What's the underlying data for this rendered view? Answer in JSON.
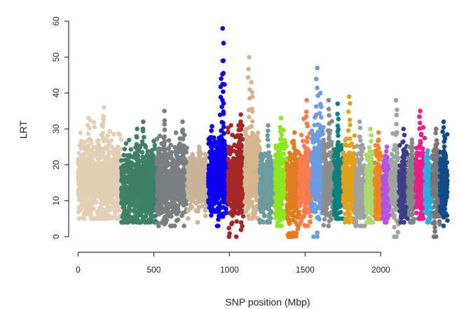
{
  "chart_data": {
    "type": "scatter",
    "xlabel": "SNP position (Mbp)",
    "ylabel": "LRT",
    "xlim": [
      -30,
      2470
    ],
    "ylim": [
      -2,
      62
    ],
    "xticks": [
      0,
      500,
      1000,
      1500,
      2000
    ],
    "yticks": [
      0,
      10,
      20,
      30,
      40,
      50,
      60
    ],
    "grid": false,
    "legend": "none",
    "series": [
      {
        "start": 0,
        "end": 285,
        "color": "#e3cfb6",
        "min": 5,
        "max": 36,
        "base": 16,
        "spread": 7,
        "count": 900,
        "peaks": [
          [
            170,
            36
          ],
          [
            70,
            33
          ]
        ]
      },
      {
        "start": 285,
        "end": 520,
        "color": "#3f8068",
        "min": 4,
        "max": 32,
        "base": 14,
        "spread": 7,
        "count": 700,
        "peaks": [
          [
            430,
            32
          ],
          [
            390,
            30
          ]
        ]
      },
      {
        "start": 520,
        "end": 720,
        "color": "#7a7f80",
        "min": 3,
        "max": 35,
        "base": 15,
        "spread": 7,
        "count": 550,
        "peaks": [
          [
            570,
            35
          ],
          [
            690,
            32
          ]
        ]
      },
      {
        "start": 720,
        "end": 860,
        "color": "#cab39a",
        "min": 4,
        "max": 26,
        "base": 15,
        "spread": 5,
        "count": 350,
        "peaks": [
          [
            800,
            25
          ]
        ]
      },
      {
        "start": 860,
        "end": 990,
        "color": "#0b00ee",
        "min": 3,
        "max": 58,
        "base": 17,
        "spread": 7,
        "count": 500,
        "peaks": [
          [
            955,
            58
          ],
          [
            960,
            49
          ],
          [
            945,
            44
          ]
        ]
      },
      {
        "start": 990,
        "end": 1100,
        "color": "#a52628",
        "min": 0,
        "max": 34,
        "base": 15,
        "spread": 7,
        "count": 350,
        "peaks": [
          [
            1075,
            34
          ],
          [
            1060,
            31
          ]
        ]
      },
      {
        "start": 1100,
        "end": 1200,
        "color": "#d5b58b",
        "min": 5,
        "max": 50,
        "base": 18,
        "spread": 7,
        "count": 350,
        "peaks": [
          [
            1130,
            50
          ],
          [
            1145,
            43
          ]
        ]
      },
      {
        "start": 1200,
        "end": 1300,
        "color": "#6e9b9e",
        "min": 4,
        "max": 32,
        "base": 14,
        "spread": 6,
        "count": 300,
        "peaks": [
          [
            1255,
            31
          ]
        ]
      },
      {
        "start": 1300,
        "end": 1380,
        "color": "#8ee621",
        "min": 3,
        "max": 33,
        "base": 15,
        "spread": 7,
        "count": 250,
        "peaks": [
          [
            1340,
            33
          ]
        ]
      },
      {
        "start": 1380,
        "end": 1460,
        "color": "#e07c22",
        "min": 0,
        "max": 30,
        "base": 13,
        "spread": 7,
        "count": 250,
        "peaks": [
          [
            1430,
            29
          ]
        ]
      },
      {
        "start": 1460,
        "end": 1540,
        "color": "#ff7b4f",
        "min": 3,
        "max": 38,
        "base": 15,
        "spread": 7,
        "count": 250,
        "peaks": [
          [
            1510,
            38
          ]
        ]
      },
      {
        "start": 1540,
        "end": 1620,
        "color": "#6b9ce0",
        "min": 0,
        "max": 47,
        "base": 17,
        "spread": 8,
        "count": 250,
        "peaks": [
          [
            1580,
            47
          ],
          [
            1600,
            40
          ]
        ]
      },
      {
        "start": 1620,
        "end": 1690,
        "color": "#8a8d8a",
        "min": 3,
        "max": 38,
        "base": 15,
        "spread": 7,
        "count": 220,
        "peaks": [
          [
            1655,
            38
          ]
        ]
      },
      {
        "start": 1690,
        "end": 1750,
        "color": "#0b8080",
        "min": 5,
        "max": 37,
        "base": 15,
        "spread": 7,
        "count": 180,
        "peaks": [
          [
            1715,
            37
          ]
        ]
      },
      {
        "start": 1750,
        "end": 1830,
        "color": "#e1a11c",
        "min": 4,
        "max": 39,
        "base": 15,
        "spread": 7,
        "count": 240,
        "peaks": [
          [
            1790,
            39
          ]
        ]
      },
      {
        "start": 1830,
        "end": 1900,
        "color": "#9fa1a4",
        "min": 3,
        "max": 32,
        "base": 13,
        "spread": 6,
        "count": 200,
        "peaks": [
          [
            1860,
            32
          ]
        ]
      },
      {
        "start": 1900,
        "end": 1960,
        "color": "#abd96b",
        "min": 4,
        "max": 30,
        "base": 13,
        "spread": 6,
        "count": 180,
        "peaks": [
          [
            1930,
            30
          ]
        ]
      },
      {
        "start": 1960,
        "end": 2010,
        "color": "#f08624",
        "min": 5,
        "max": 30,
        "base": 13,
        "spread": 6,
        "count": 150,
        "peaks": [
          [
            1985,
            29
          ]
        ]
      },
      {
        "start": 2010,
        "end": 2060,
        "color": "#b553e5",
        "min": 4,
        "max": 26,
        "base": 12,
        "spread": 6,
        "count": 150,
        "peaks": [
          [
            2040,
            25
          ]
        ]
      },
      {
        "start": 2060,
        "end": 2120,
        "color": "#9da69f",
        "min": 0,
        "max": 38,
        "base": 14,
        "spread": 7,
        "count": 180,
        "peaks": [
          [
            2100,
            38
          ]
        ]
      },
      {
        "start": 2120,
        "end": 2180,
        "color": "#3c3f86",
        "min": 4,
        "max": 30,
        "base": 14,
        "spread": 6,
        "count": 180,
        "peaks": [
          [
            2150,
            30
          ]
        ]
      },
      {
        "start": 2180,
        "end": 2230,
        "color": "#7a8c86",
        "min": 4,
        "max": 28,
        "base": 13,
        "spread": 6,
        "count": 150,
        "peaks": [
          [
            2205,
            27
          ]
        ]
      },
      {
        "start": 2230,
        "end": 2290,
        "color": "#ee1c8c",
        "min": 5,
        "max": 35,
        "base": 15,
        "spread": 7,
        "count": 180,
        "peaks": [
          [
            2260,
            35
          ]
        ]
      },
      {
        "start": 2290,
        "end": 2340,
        "color": "#2aaee0",
        "min": 4,
        "max": 25,
        "base": 13,
        "spread": 6,
        "count": 150,
        "peaks": [
          [
            2310,
            24
          ]
        ]
      },
      {
        "start": 2340,
        "end": 2390,
        "color": "#787878",
        "min": 0,
        "max": 30,
        "base": 14,
        "spread": 7,
        "count": 150,
        "peaks": [
          [
            2365,
            30
          ]
        ]
      },
      {
        "start": 2390,
        "end": 2440,
        "color": "#134a88",
        "min": 3,
        "max": 32,
        "base": 14,
        "spread": 7,
        "count": 150,
        "peaks": [
          [
            2415,
            32
          ]
        ]
      }
    ]
  }
}
